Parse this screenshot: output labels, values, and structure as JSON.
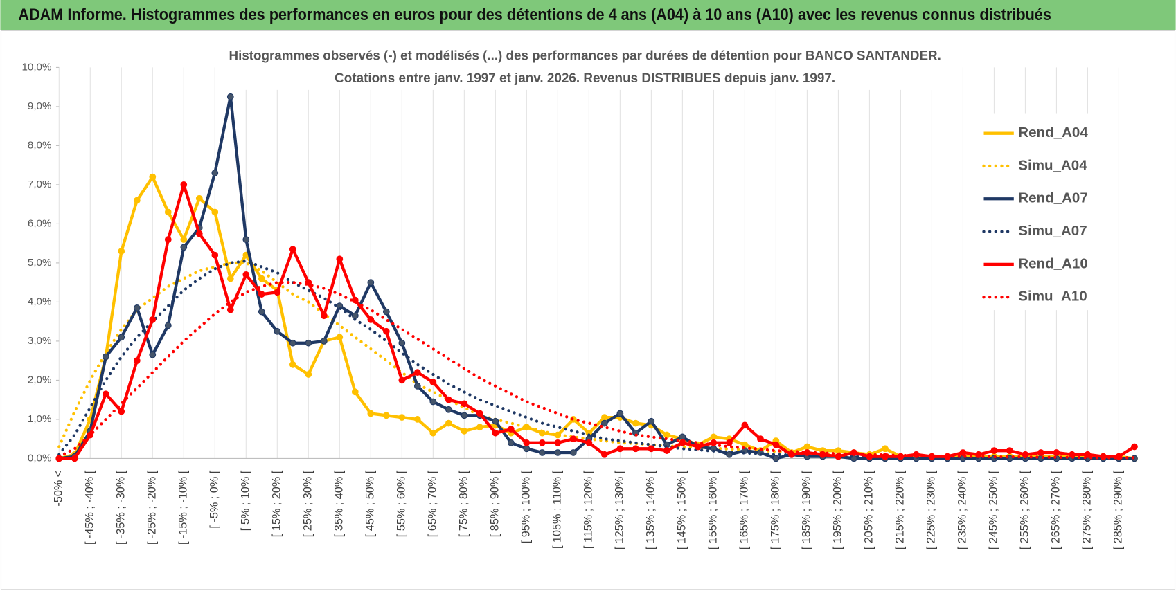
{
  "header": {
    "title": "ADAM Informe. Histogrammes des performances en euros pour des détentions de 4 ans (A04) à 10 ans (A10) avec les revenus connus distribués"
  },
  "chart_data": {
    "type": "line",
    "title": "Histogrammes observés (-) et modélisés (...) des performances par durées de détention pour BANCO SANTANDER.",
    "subtitle": "Cotations entre janv. 1997 et janv. 2026. Revenus DISTRIBUES depuis janv. 1997.",
    "categories": [
      "-50% <",
      null,
      "[ -45% ; -40% [",
      null,
      "[ -35% ; -30% [",
      null,
      "[ -25% ; -20% [",
      null,
      "[ -15% ; -10% [",
      null,
      "[ -5% ; 0% [",
      null,
      "[ 5% ; 10% [",
      null,
      "[ 15% ; 20% [",
      null,
      "[ 25% ; 30% [",
      null,
      "[ 35% ; 40% [",
      null,
      "[ 45% ; 50% [",
      null,
      "[ 55% ; 60% [",
      null,
      "[ 65% ; 70% [",
      null,
      "[ 75% ; 80% [",
      null,
      "[ 85% ; 90% [",
      null,
      "[ 95% ; 100% [",
      null,
      "[ 105% ; 110% [",
      null,
      "[ 115% ; 120% [",
      null,
      "[ 125% ; 130% [",
      null,
      "[ 135% ; 140% [",
      null,
      "[ 145% ; 150% [",
      null,
      "[ 155% ; 160% [",
      null,
      "[ 165% ; 170% [",
      null,
      "[ 175% ; 180% [",
      null,
      "[ 185% ; 190% [",
      null,
      "[ 195% ; 200% [",
      null,
      "[ 205% ; 210% [",
      null,
      "[ 215% ; 220% [",
      null,
      "[ 225% ; 230% [",
      null,
      "[ 235% ; 240% [",
      null,
      "[ 245% ; 250% [",
      null,
      "[ 255% ; 260% [",
      null,
      "[ 265% ; 270% [",
      null,
      "[ 275% ; 280% [",
      null,
      "[ 285% ; 290% [",
      null
    ],
    "series": [
      {
        "name": "Rend_A04",
        "color": "#ffc000",
        "dashed": false,
        "markers": true,
        "values": [
          0,
          0.1,
          1.0,
          2.6,
          5.3,
          6.6,
          7.2,
          6.3,
          5.6,
          6.65,
          6.3,
          4.6,
          5.2,
          4.6,
          4.3,
          2.4,
          2.15,
          3.0,
          3.1,
          1.7,
          1.15,
          1.1,
          1.05,
          1.0,
          0.65,
          0.9,
          0.7,
          0.8,
          0.85,
          0.65,
          0.8,
          0.65,
          0.6,
          1.0,
          0.65,
          1.05,
          1.05,
          0.9,
          0.85,
          0.6,
          0.5,
          0.35,
          0.55,
          0.5,
          0.35,
          0.2,
          0.45,
          0.15,
          0.3,
          0.2,
          0.2,
          0.15,
          0.1,
          0.25,
          0.05,
          0.05,
          0.05,
          0.05,
          0.05,
          0.05,
          0.05,
          0.05,
          0.05,
          0.05,
          0.05,
          0.05,
          0.05,
          0.05,
          0.05,
          0
        ]
      },
      {
        "name": "Simu_A04",
        "color": "#ffc000",
        "dashed": true,
        "markers": false,
        "values": [
          0.3,
          1.2,
          2.0,
          2.7,
          3.3,
          3.8,
          4.1,
          4.4,
          4.6,
          4.8,
          4.9,
          5.0,
          5.0,
          4.8,
          4.5,
          4.2,
          4.0,
          3.7,
          3.4,
          3.1,
          2.8,
          2.5,
          2.2,
          1.9,
          1.7,
          1.5,
          1.3,
          1.1,
          1.0,
          0.9,
          0.8,
          0.7,
          0.6,
          0.55,
          0.5,
          0.45,
          0.4,
          0.38,
          0.35,
          0.32,
          0.3,
          0.28,
          0.26,
          0.24,
          0.22,
          0.2,
          0.18,
          0.16,
          0.14,
          0.12,
          0.11,
          0.1,
          0.09,
          0.08,
          0.07,
          0.06,
          0.06,
          0.05,
          0.05,
          0.04,
          0.04,
          0.03,
          0.03,
          0.03,
          0.02,
          0.02,
          0.02,
          0.02,
          0.01,
          0.01
        ]
      },
      {
        "name": "Rend_A07",
        "color": "#1f3864",
        "dashed": false,
        "markers": true,
        "values": [
          0,
          0.05,
          0.7,
          2.6,
          3.1,
          3.85,
          2.65,
          3.4,
          5.4,
          5.9,
          7.3,
          9.25,
          5.6,
          3.75,
          3.25,
          2.95,
          2.95,
          3.0,
          3.9,
          3.65,
          4.5,
          3.75,
          2.95,
          1.85,
          1.45,
          1.25,
          1.1,
          1.1,
          0.95,
          0.4,
          0.25,
          0.15,
          0.15,
          0.15,
          0.5,
          0.9,
          1.15,
          0.65,
          0.95,
          0.35,
          0.55,
          0.3,
          0.25,
          0.1,
          0.2,
          0.15,
          0,
          0.1,
          0.05,
          0.05,
          0.05,
          0,
          0,
          0,
          0,
          0,
          0,
          0,
          0,
          0,
          0,
          0,
          0,
          0,
          0,
          0,
          0,
          0,
          0,
          0
        ]
      },
      {
        "name": "Simu_A07",
        "color": "#1f3864",
        "dashed": true,
        "markers": false,
        "values": [
          0.1,
          0.6,
          1.3,
          2.0,
          2.6,
          3.1,
          3.5,
          3.9,
          4.3,
          4.6,
          4.85,
          5.0,
          5.05,
          4.9,
          4.75,
          4.5,
          4.3,
          4.1,
          3.85,
          3.55,
          3.3,
          3.0,
          2.7,
          2.4,
          2.15,
          1.9,
          1.7,
          1.5,
          1.35,
          1.2,
          1.05,
          0.9,
          0.8,
          0.7,
          0.6,
          0.5,
          0.45,
          0.4,
          0.35,
          0.3,
          0.25,
          0.22,
          0.19,
          0.16,
          0.14,
          0.12,
          0.1,
          0.09,
          0.08,
          0.07,
          0.06,
          0.05,
          0.05,
          0.04,
          0.04,
          0.03,
          0.03,
          0.03,
          0.02,
          0.02,
          0.02,
          0.02,
          0.02,
          0.02,
          0.01,
          0.01,
          0.01,
          0.01,
          0.01,
          0.01
        ]
      },
      {
        "name": "Rend_A10",
        "color": "#ff0000",
        "dashed": false,
        "markers": true,
        "values": [
          0,
          0,
          0.6,
          1.65,
          1.2,
          2.5,
          3.55,
          5.6,
          7.0,
          5.75,
          5.2,
          3.8,
          4.7,
          4.2,
          4.25,
          5.35,
          4.5,
          3.65,
          5.1,
          4.05,
          3.55,
          3.25,
          2.0,
          2.2,
          1.95,
          1.5,
          1.4,
          1.15,
          0.65,
          0.75,
          0.4,
          0.4,
          0.4,
          0.5,
          0.4,
          0.1,
          0.25,
          0.25,
          0.25,
          0.2,
          0.4,
          0.3,
          0.4,
          0.4,
          0.85,
          0.5,
          0.35,
          0.1,
          0.15,
          0.1,
          0.05,
          0.15,
          0.05,
          0.05,
          0.05,
          0.1,
          0.05,
          0.05,
          0.15,
          0.1,
          0.2,
          0.2,
          0.1,
          0.15,
          0.15,
          0.1,
          0.1,
          0.05,
          0.05,
          0.3
        ]
      },
      {
        "name": "Simu_A10",
        "color": "#ff0000",
        "dashed": true,
        "markers": false,
        "values": [
          0.05,
          0.25,
          0.6,
          1.0,
          1.4,
          1.8,
          2.2,
          2.6,
          3.0,
          3.35,
          3.7,
          4.0,
          4.25,
          4.4,
          4.5,
          4.5,
          4.45,
          4.35,
          4.2,
          4.0,
          3.8,
          3.55,
          3.3,
          3.05,
          2.8,
          2.55,
          2.3,
          2.05,
          1.85,
          1.65,
          1.45,
          1.3,
          1.15,
          1.0,
          0.9,
          0.8,
          0.7,
          0.6,
          0.55,
          0.5,
          0.45,
          0.4,
          0.35,
          0.3,
          0.27,
          0.24,
          0.2,
          0.18,
          0.16,
          0.14,
          0.12,
          0.11,
          0.1,
          0.09,
          0.08,
          0.07,
          0.06,
          0.06,
          0.05,
          0.05,
          0.04,
          0.04,
          0.04,
          0.03,
          0.03,
          0.03,
          0.02,
          0.02,
          0.02,
          0.02
        ]
      }
    ],
    "ylim": [
      0,
      10
    ],
    "yticks": [
      {
        "value": 0,
        "label": "0,0%"
      },
      {
        "value": 1,
        "label": "1,0%"
      },
      {
        "value": 2,
        "label": "2,0%"
      },
      {
        "value": 3,
        "label": "3,0%"
      },
      {
        "value": 4,
        "label": "4,0%"
      },
      {
        "value": 5,
        "label": "5,0%"
      },
      {
        "value": 6,
        "label": "6,0%"
      },
      {
        "value": 7,
        "label": "7,0%"
      },
      {
        "value": 8,
        "label": "8,0%"
      },
      {
        "value": 9,
        "label": "9,0%"
      },
      {
        "value": 10,
        "label": "10,0%"
      }
    ],
    "grid": "x",
    "legend": "right"
  }
}
